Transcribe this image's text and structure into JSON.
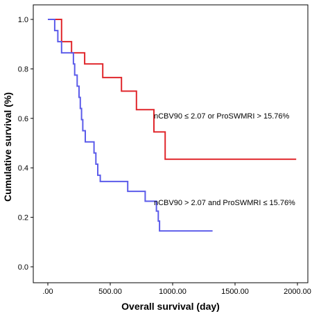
{
  "chart_data": {
    "type": "line",
    "xlabel": "Overall survival (day)",
    "ylabel": "Cumulative survival (%)",
    "xlim": [
      0,
      2000
    ],
    "ylim": [
      0,
      1.0
    ],
    "x_ticks": [
      0,
      500,
      1000,
      1500,
      2000
    ],
    "x_tick_labels": [
      ".00",
      "500.00",
      "1000.00",
      "1500.00",
      "2000.00"
    ],
    "y_ticks": [
      0,
      0.2,
      0.4,
      0.6,
      0.8,
      1.0
    ],
    "y_tick_labels": [
      "0.0",
      "0.2",
      "0.4",
      "0.6",
      "0.8",
      "1.0"
    ],
    "grid": false,
    "series": [
      {
        "name": "nCBV90 ≤ 2.07 or ProSWMRI > 15.76%",
        "color": "#e0262b",
        "step": true,
        "x": [
          0,
          85,
          110,
          190,
          295,
          440,
          590,
          710,
          850,
          940,
          1990
        ],
        "y": [
          1.0,
          1.0,
          0.91,
          0.865,
          0.82,
          0.765,
          0.71,
          0.635,
          0.545,
          0.435,
          0.435
        ]
      },
      {
        "name": "nCBV90 > 2.07 and ProSWMRI ≤ 15.76%",
        "color": "#5b5bea",
        "step": true,
        "x": [
          0,
          55,
          80,
          110,
          205,
          215,
          235,
          250,
          260,
          270,
          280,
          300,
          370,
          385,
          400,
          420,
          450,
          640,
          780,
          870,
          885,
          895,
          1320
        ],
        "y": [
          1.0,
          0.955,
          0.91,
          0.865,
          0.82,
          0.775,
          0.73,
          0.685,
          0.64,
          0.595,
          0.55,
          0.505,
          0.46,
          0.415,
          0.37,
          0.345,
          0.345,
          0.305,
          0.265,
          0.225,
          0.185,
          0.145,
          0.145
        ]
      }
    ],
    "annotations": [
      {
        "text": "nCBV90 ≤ 2.07 or ProSWMRI > 15.76%",
        "x": 850,
        "y": 0.6
      },
      {
        "text": "nCBV90 > 2.07 and ProSWMRI ≤ 15.76%",
        "x": 850,
        "y": 0.25
      }
    ]
  }
}
